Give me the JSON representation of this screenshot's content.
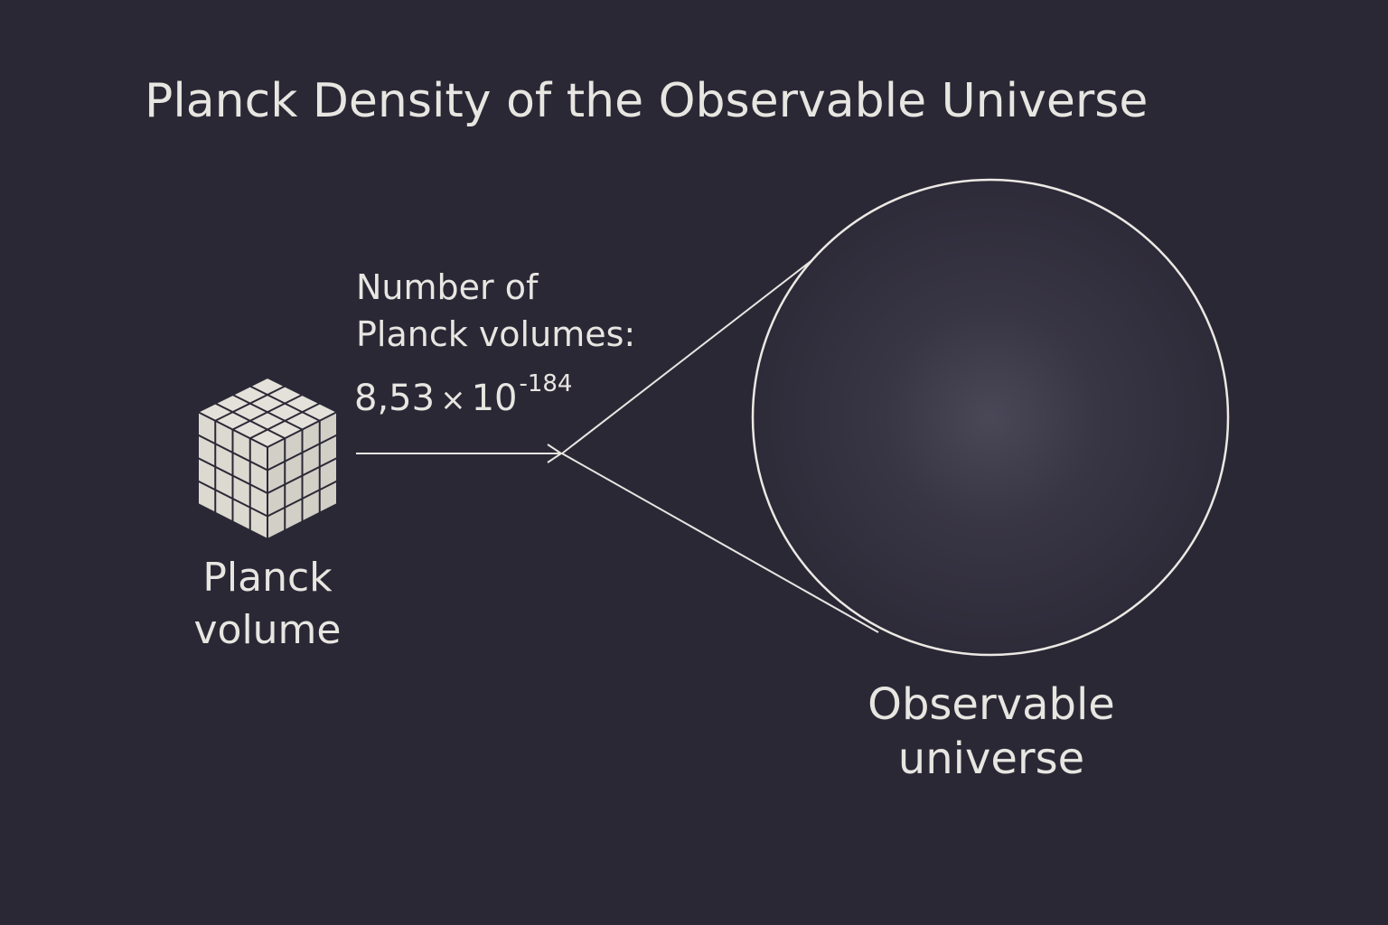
{
  "title": "Planck Density of the Observable Universe",
  "count_label": {
    "line1": "Number of",
    "line2": "Planck volumes:"
  },
  "count_value": {
    "mantissa": "8,53",
    "times": "×",
    "base": "10",
    "exponent": "-184"
  },
  "planck_volume_label": {
    "line1": "Planck",
    "line2": "volume"
  },
  "universe_label": {
    "line1": "Observable",
    "line2": "universe"
  },
  "colors": {
    "background": "#2b2836",
    "foreground": "#e8e6e1",
    "cube_face": "#e4e1da",
    "cube_grid": "#2b2836"
  }
}
